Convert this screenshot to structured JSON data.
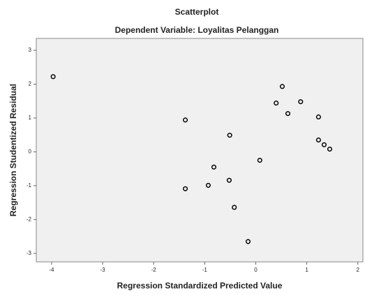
{
  "chart_data": {
    "type": "scatter",
    "title": "Scatterplot",
    "subtitle": "Dependent Variable: Loyalitas Pelanggan",
    "x_label": "Regression Standardized Predicted Value",
    "y_label": "Regression Studentized Residual",
    "x": [
      -3.97,
      -1.38,
      -1.38,
      -0.93,
      -0.82,
      -0.51,
      -0.52,
      -0.42,
      -0.15,
      0.08,
      0.4,
      0.52,
      0.63,
      0.88,
      1.23,
      1.23,
      1.34,
      1.45
    ],
    "y": [
      2.22,
      0.94,
      -1.09,
      -0.99,
      -0.45,
      0.49,
      -0.84,
      -1.64,
      -2.65,
      -0.25,
      1.44,
      1.93,
      1.13,
      1.48,
      1.03,
      0.35,
      0.21,
      0.08
    ],
    "color": "#000000",
    "xlim": [
      -4.3,
      2.1
    ],
    "xticks": [
      -4,
      -3,
      -2,
      -1,
      0,
      1,
      2
    ],
    "ylim": [
      -3.25,
      3.35
    ],
    "yticks": [
      -3,
      -2,
      -1,
      0,
      1,
      2,
      3
    ]
  }
}
